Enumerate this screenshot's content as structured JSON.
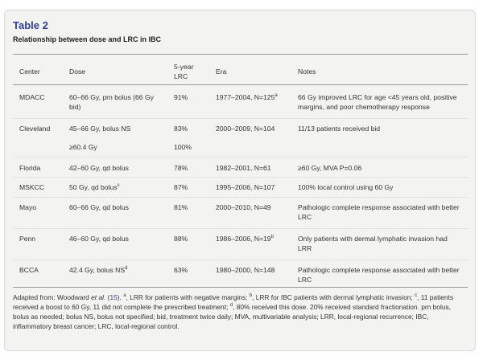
{
  "table": {
    "title": "Table 2",
    "caption": "Relationship between dose and LRC in IBC",
    "headers": {
      "center": "Center",
      "dose": "Dose",
      "lrc_line1": "5-year",
      "lrc_line2": "LRC",
      "era": "Era",
      "notes": "Notes"
    },
    "rows": [
      {
        "center": "MDACC",
        "dose_line1": "60–66 Gy, prn bolus (66 Gy",
        "dose_line2": "bid)",
        "lrc": "91%",
        "era": "1977–2004, N=125",
        "era_sup": "a",
        "notes_line1": "66 Gy improved LRC for age <45 years old, positive",
        "notes_line2": "margins, and poor chemotherapy response"
      },
      {
        "center": "Cleveland",
        "dose": "45–66 Gy, bolus NS",
        "lrc": "83%",
        "era": "2000–2009, N=104",
        "notes": "11/13 patients received bid"
      },
      {
        "center": "",
        "dose": "≥60.4 Gy",
        "lrc": "100%",
        "era": "",
        "notes": ""
      },
      {
        "center": "Florida",
        "dose": "42–60 Gy, qd bolus",
        "lrc": "78%",
        "era": "1982–2001, N=61",
        "notes": "≥60 Gy, MVA P=0.06"
      },
      {
        "center": "MSKCC",
        "dose": "50 Gy, qd bolus",
        "dose_sup": "c",
        "lrc": "87%",
        "era": "1995–2006, N=107",
        "notes": "100% local control using 60 Gy"
      },
      {
        "center": "Mayo",
        "dose": "60–66 Gy, qd bolus",
        "lrc": "81%",
        "era": "2000–2010, N=49",
        "notes_line1": "Pathologic complete response associated with better",
        "notes_line2": "LRC"
      },
      {
        "center": "Penn",
        "dose": "46–60 Gy, qd bolus",
        "lrc": "88%",
        "era": "1986–2006, N=19",
        "era_sup": "b",
        "notes_line1": "Only patients with dermal lymphatic invasion had",
        "notes_line2": "LRR"
      },
      {
        "center": "BCCA",
        "dose": "42.4 Gy, bolus NS",
        "dose_sup": "d",
        "lrc": "63%",
        "era": "1980–2000, N=148",
        "notes_line1": "Pathologic complete response associated with better",
        "notes_line2": "LRC"
      }
    ],
    "footnote": {
      "adapted": "Adapted from: Woodward",
      "etal": "et al.",
      "ref_open": " (",
      "ref_num": "15",
      "ref_close": "). ",
      "sup_a": "a",
      "text_a": ", LRR for patients with negative margins; ",
      "sup_b": "b",
      "text_b": ", LRR for IBC patients with dermal lymphatic invasion; ",
      "sup_c": "c",
      "text_c": ", 11 patients received a boost to 60 Gy, 11 did not complete the prescribed treatment; ",
      "sup_d": "d",
      "text_d": ", 80% received this dose. 20% received standard fractionation. prn bolus, bolus as needed; bolus NS, bolus not specified; bid, treatment twice daily; MVA, multivariable analysis; LRR, local-regional recurrence; IBC, inflammatory breast cancer; LRC, local-regional control."
    }
  }
}
